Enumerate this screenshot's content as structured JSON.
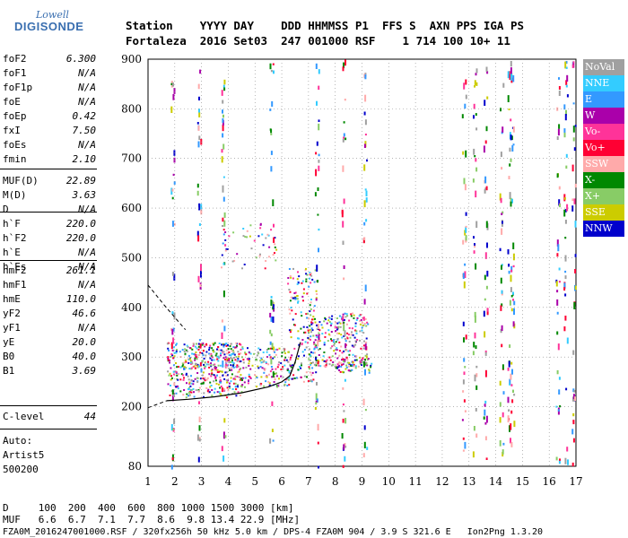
{
  "logo": {
    "line1": "Lowell",
    "line2": "DIGISONDE"
  },
  "header": {
    "line1": "Station    YYYY DAY    DDD HHMMSS P1  FFS S  AXN PPS IGA PS",
    "line2": "Fortaleza  2016 Set03  247 001000 RSF    1 714 100 10+ 11"
  },
  "params": {
    "group1": [
      {
        "name": "foF2",
        "value": "6.300"
      },
      {
        "name": "foF1",
        "value": "N/A"
      },
      {
        "name": "foF1p",
        "value": "N/A"
      },
      {
        "name": "foE",
        "value": "N/A"
      },
      {
        "name": "foEp",
        "value": "0.42"
      },
      {
        "name": "fxI",
        "value": "7.50"
      },
      {
        "name": "foEs",
        "value": "N/A"
      },
      {
        "name": "fmin",
        "value": "2.10"
      }
    ],
    "group2": [
      {
        "name": "MUF(D)",
        "value": "22.89"
      },
      {
        "name": "M(D)",
        "value": "3.63"
      },
      {
        "name": "D",
        "value": "N/A"
      }
    ],
    "group3": [
      {
        "name": "h`F",
        "value": "220.0"
      },
      {
        "name": "h`F2",
        "value": "220.0"
      },
      {
        "name": "h`E",
        "value": "N/A"
      },
      {
        "name": "h`Es",
        "value": "N/A"
      }
    ],
    "group4": [
      {
        "name": "hmF2",
        "value": "261.1"
      },
      {
        "name": "hmF1",
        "value": "N/A"
      },
      {
        "name": "hmE",
        "value": "110.0"
      },
      {
        "name": "yF2",
        "value": "46.6"
      },
      {
        "name": "yF1",
        "value": "N/A"
      },
      {
        "name": "yE",
        "value": "20.0"
      },
      {
        "name": "B0",
        "value": "40.0"
      },
      {
        "name": "B1",
        "value": "3.69"
      }
    ],
    "group5": [
      {
        "name": "C-level",
        "value": "44"
      }
    ],
    "auto": [
      "Auto:",
      "Artist5",
      "500200"
    ]
  },
  "bottom": {
    "d_line": "D     100  200  400  600  800 1000 1500 3000 [km]",
    "muf_line": "MUF   6.6  6.7  7.1  7.7  8.6  9.8 13.4 22.9 [MHz]",
    "footer": "FZA0M_2016247001000.RSF / 320fx256h 50 kHz 5.0 km / DPS-4 FZA0M 904 / 3.9 S 321.6 E   Ion2Png 1.3.20"
  },
  "legend": [
    {
      "label": "NoVal",
      "color": "#a0a0a0"
    },
    {
      "label": "NNE",
      "color": "#33ccff"
    },
    {
      "label": "E",
      "color": "#3399ff"
    },
    {
      "label": "W",
      "color": "#aa00aa"
    },
    {
      "label": "Vo-",
      "color": "#ff3399"
    },
    {
      "label": "Vo+",
      "color": "#ff0033"
    },
    {
      "label": "SSW",
      "color": "#ffaaaa"
    },
    {
      "label": "X-",
      "color": "#008800"
    },
    {
      "label": "X+",
      "color": "#88cc66"
    },
    {
      "label": "SSE",
      "color": "#cccc00"
    },
    {
      "label": "NNW",
      "color": "#0000cc"
    }
  ],
  "chart_data": {
    "type": "scatter",
    "xlabel": "",
    "ylabel": "",
    "xlim": [
      1,
      17
    ],
    "ylim": [
      80,
      900
    ],
    "x_ticks": [
      "1",
      "2",
      "3",
      "4",
      "5",
      "6",
      "7",
      "8",
      "9",
      "10",
      "11",
      "12",
      "13",
      "14",
      "15",
      "16",
      "17"
    ],
    "y_ticks": [
      "80",
      "200",
      "300",
      "400",
      "500",
      "600",
      "700",
      "800",
      "900"
    ],
    "profile_solid": [
      [
        1.7,
        212
      ],
      [
        2.5,
        215
      ],
      [
        3.5,
        220
      ],
      [
        4.5,
        228
      ],
      [
        5.5,
        240
      ],
      [
        6.0,
        250
      ],
      [
        6.3,
        262
      ],
      [
        6.5,
        290
      ],
      [
        6.7,
        330
      ]
    ],
    "profile_dashed": [
      [
        1.0,
        198
      ],
      [
        1.7,
        212
      ]
    ],
    "virtual_dashed": [
      [
        1.0,
        445
      ],
      [
        1.6,
        405
      ],
      [
        2.0,
        380
      ],
      [
        2.4,
        355
      ]
    ],
    "echo_regions": [
      {
        "x": [
          1.7,
          4.5
        ],
        "y": [
          220,
          330
        ],
        "density": 0.6
      },
      {
        "x": [
          2.5,
          4.5
        ],
        "y": [
          280,
          330
        ],
        "density": 0.5
      },
      {
        "x": [
          4.5,
          6.3
        ],
        "y": [
          240,
          320
        ],
        "density": 0.5
      },
      {
        "x": [
          6.2,
          7.3
        ],
        "y": [
          250,
          480
        ],
        "density": 0.35
      },
      {
        "x": [
          7.0,
          9.2
        ],
        "y": [
          280,
          390
        ],
        "density": 0.5
      },
      {
        "x": [
          8.0,
          9.4
        ],
        "y": [
          270,
          300
        ],
        "density": 0.5
      },
      {
        "x": [
          3.5,
          5.8
        ],
        "y": [
          480,
          570
        ],
        "density": 0.12
      }
    ],
    "vertical_streaks": [
      1.9,
      2.9,
      3.8,
      5.6,
      7.3,
      8.3,
      9.1,
      12.8,
      13.2,
      13.6,
      14.2,
      14.5,
      14.6,
      16.3,
      16.6,
      16.9
    ]
  }
}
